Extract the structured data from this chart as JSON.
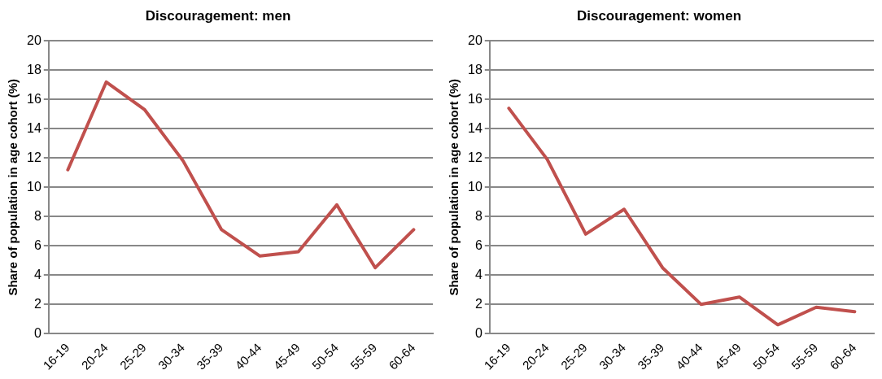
{
  "chart_data": [
    {
      "type": "line",
      "title": "Discouragement: men",
      "ylabel": "Share of population in age cohort (%)",
      "categories": [
        "16-19",
        "20-24",
        "25-29",
        "30-34",
        "35-39",
        "40-44",
        "45-49",
        "50-54",
        "55-59",
        "60-64"
      ],
      "series": [
        {
          "color": "#c0504d",
          "values": [
            11.2,
            17.2,
            15.3,
            11.8,
            7.1,
            5.3,
            5.6,
            8.8,
            4.5,
            7.1
          ]
        }
      ],
      "ylim": [
        0,
        20
      ],
      "yticks": [
        0,
        2,
        4,
        6,
        8,
        10,
        12,
        14,
        16,
        18,
        20
      ],
      "grid": "y",
      "legend": false,
      "marker": "none"
    },
    {
      "type": "line",
      "title": "Discouragement: women",
      "ylabel": "Share of population in age cohort (%)",
      "categories": [
        "16-19",
        "20-24",
        "25-29",
        "30-34",
        "35-39",
        "40-44",
        "45-49",
        "50-54",
        "55-59",
        "60-64"
      ],
      "series": [
        {
          "color": "#c0504d",
          "values": [
            15.4,
            11.9,
            6.8,
            8.5,
            4.5,
            2.0,
            2.5,
            0.6,
            1.8,
            1.5
          ]
        }
      ],
      "ylim": [
        0,
        20
      ],
      "yticks": [
        0,
        2,
        4,
        6,
        8,
        10,
        12,
        14,
        16,
        18,
        20
      ],
      "grid": "y",
      "legend": false,
      "marker": "none"
    }
  ]
}
